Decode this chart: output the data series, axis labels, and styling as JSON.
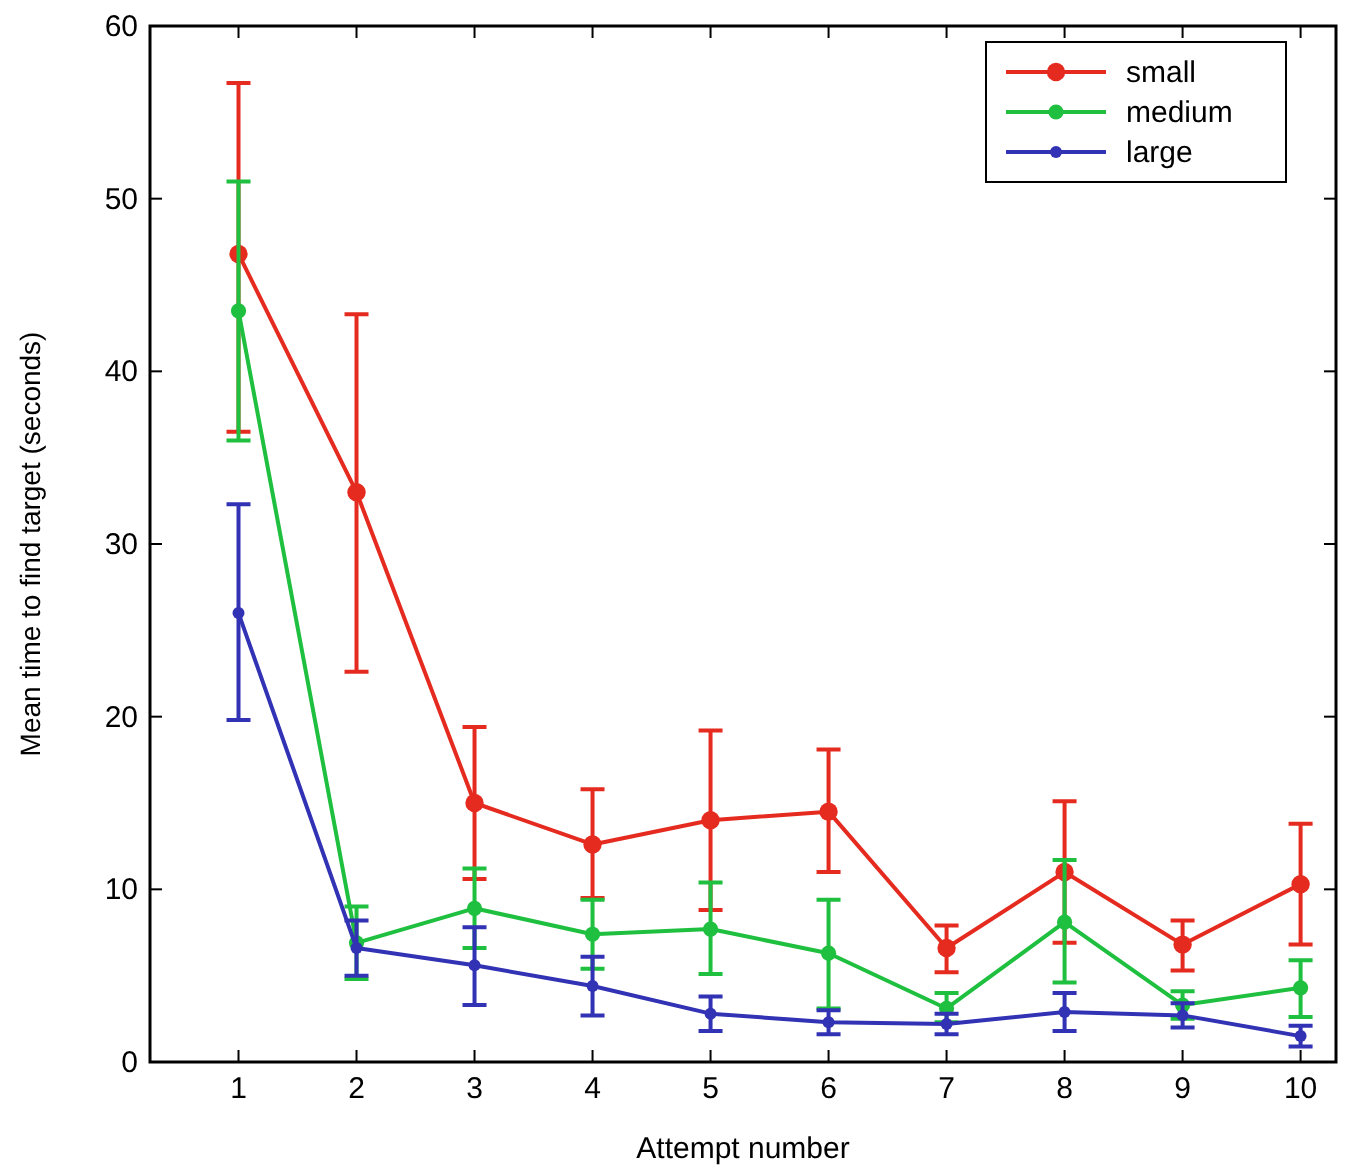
{
  "chart_data": {
    "type": "line",
    "xlabel": "Attempt number",
    "ylabel": "Mean time to find target (seconds)",
    "x": [
      1,
      2,
      3,
      4,
      5,
      6,
      7,
      8,
      9,
      10
    ],
    "xlim": [
      0.25,
      10.3
    ],
    "xticks": [
      1,
      2,
      3,
      4,
      5,
      6,
      7,
      8,
      9,
      10
    ],
    "ylim": [
      0,
      60
    ],
    "yticks": [
      0,
      10,
      20,
      30,
      40,
      50,
      60
    ],
    "grid": false,
    "legend": "top right",
    "marker": "circle",
    "line_style": "solid",
    "series": [
      {
        "name": "small",
        "color": "#e52b1f",
        "values": [
          46.8,
          33,
          15,
          12.6,
          14,
          14.5,
          6.6,
          11,
          6.8,
          10.3
        ],
        "errors": [
          [
            36.5,
            56.7
          ],
          [
            22.6,
            43.3
          ],
          [
            10.6,
            19.4
          ],
          [
            9.5,
            15.8
          ],
          [
            8.8,
            19.2
          ],
          [
            11,
            18.1
          ],
          [
            5.2,
            7.9
          ],
          [
            6.9,
            15.1
          ],
          [
            5.3,
            8.2
          ],
          [
            6.8,
            13.8
          ]
        ]
      },
      {
        "name": "medium",
        "color": "#1fbf3f",
        "values": [
          43.5,
          6.9,
          8.9,
          7.4,
          7.7,
          6.3,
          3.1,
          8.1,
          3.3,
          4.3
        ],
        "errors": [
          [
            36,
            51
          ],
          [
            4.8,
            9
          ],
          [
            6.6,
            11.2
          ],
          [
            5.4,
            9.4
          ],
          [
            5.1,
            10.4
          ],
          [
            3.1,
            9.4
          ],
          [
            2.3,
            4
          ],
          [
            4.6,
            11.7
          ],
          [
            2.5,
            4.1
          ],
          [
            2.6,
            5.9
          ]
        ]
      },
      {
        "name": "large",
        "color": "#3232b4",
        "values": [
          26,
          6.6,
          5.6,
          4.4,
          2.8,
          2.3,
          2.2,
          2.9,
          2.7,
          1.5
        ],
        "errors": [
          [
            19.8,
            32.3
          ],
          [
            5,
            8.2
          ],
          [
            3.3,
            7.8
          ],
          [
            2.7,
            6.1
          ],
          [
            1.8,
            3.8
          ],
          [
            1.6,
            3
          ],
          [
            1.6,
            2.8
          ],
          [
            1.8,
            4
          ],
          [
            2,
            3.4
          ],
          [
            0.9,
            2.1
          ]
        ]
      }
    ]
  }
}
